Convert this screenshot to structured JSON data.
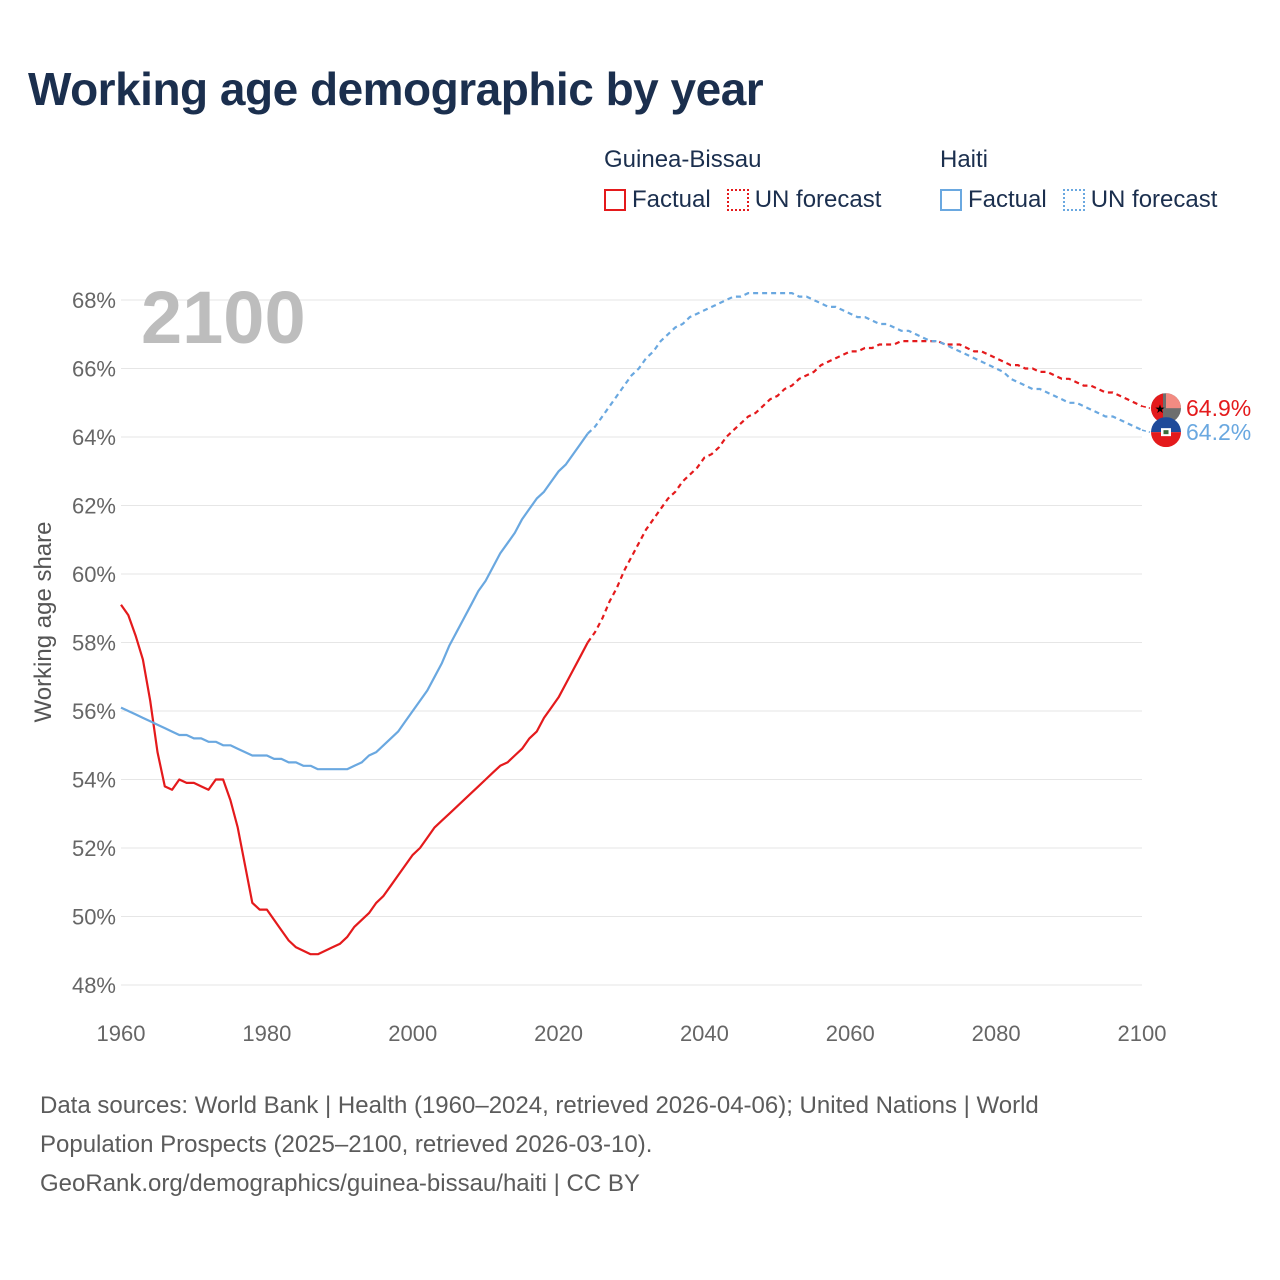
{
  "title": "Working age demographic by year",
  "legend": {
    "groups": [
      {
        "name": "Guinea-Bissau",
        "color": "#e41a1c",
        "factual_label": "Factual",
        "forecast_label": "UN forecast"
      },
      {
        "name": "Haiti",
        "color": "#6aa8e0",
        "factual_label": "Factual",
        "forecast_label": "UN forecast"
      }
    ]
  },
  "year_watermark": "2100",
  "chart_data": {
    "type": "line",
    "title": "Working age demographic by year",
    "xlabel": "",
    "ylabel": "Working age share",
    "xlim": [
      1960,
      2100
    ],
    "ylim": [
      48,
      68
    ],
    "x_ticks": [
      1960,
      1980,
      2000,
      2020,
      2040,
      2060,
      2080,
      2100
    ],
    "y_ticks": [
      48,
      50,
      52,
      54,
      56,
      58,
      60,
      62,
      64,
      66,
      68
    ],
    "y_tick_labels": [
      "48%",
      "50%",
      "52%",
      "54%",
      "56%",
      "58%",
      "60%",
      "62%",
      "64%",
      "66%",
      "68%"
    ],
    "grid": true,
    "factual_range": [
      1960,
      2024
    ],
    "forecast_range": [
      2025,
      2100
    ],
    "series": [
      {
        "name": "Guinea-Bissau",
        "color": "#e41a1c",
        "end_label": "64.9%",
        "points": [
          [
            1960,
            59.1
          ],
          [
            1961,
            58.8
          ],
          [
            1962,
            58.2
          ],
          [
            1963,
            57.5
          ],
          [
            1964,
            56.3
          ],
          [
            1965,
            54.8
          ],
          [
            1966,
            53.8
          ],
          [
            1967,
            53.7
          ],
          [
            1968,
            54.0
          ],
          [
            1969,
            53.9
          ],
          [
            1970,
            53.9
          ],
          [
            1971,
            53.8
          ],
          [
            1972,
            53.7
          ],
          [
            1973,
            54.0
          ],
          [
            1974,
            54.0
          ],
          [
            1975,
            53.4
          ],
          [
            1976,
            52.6
          ],
          [
            1977,
            51.5
          ],
          [
            1978,
            50.4
          ],
          [
            1979,
            50.2
          ],
          [
            1980,
            50.2
          ],
          [
            1981,
            49.9
          ],
          [
            1982,
            49.6
          ],
          [
            1983,
            49.3
          ],
          [
            1984,
            49.1
          ],
          [
            1985,
            49.0
          ],
          [
            1986,
            48.9
          ],
          [
            1987,
            48.9
          ],
          [
            1988,
            49.0
          ],
          [
            1989,
            49.1
          ],
          [
            1990,
            49.2
          ],
          [
            1991,
            49.4
          ],
          [
            1992,
            49.7
          ],
          [
            1993,
            49.9
          ],
          [
            1994,
            50.1
          ],
          [
            1995,
            50.4
          ],
          [
            1996,
            50.6
          ],
          [
            1997,
            50.9
          ],
          [
            1998,
            51.2
          ],
          [
            1999,
            51.5
          ],
          [
            2000,
            51.8
          ],
          [
            2001,
            52.0
          ],
          [
            2002,
            52.3
          ],
          [
            2003,
            52.6
          ],
          [
            2004,
            52.8
          ],
          [
            2005,
            53.0
          ],
          [
            2006,
            53.2
          ],
          [
            2007,
            53.4
          ],
          [
            2008,
            53.6
          ],
          [
            2009,
            53.8
          ],
          [
            2010,
            54.0
          ],
          [
            2011,
            54.2
          ],
          [
            2012,
            54.4
          ],
          [
            2013,
            54.5
          ],
          [
            2014,
            54.7
          ],
          [
            2015,
            54.9
          ],
          [
            2016,
            55.2
          ],
          [
            2017,
            55.4
          ],
          [
            2018,
            55.8
          ],
          [
            2019,
            56.1
          ],
          [
            2020,
            56.4
          ],
          [
            2021,
            56.8
          ],
          [
            2022,
            57.2
          ],
          [
            2023,
            57.6
          ],
          [
            2024,
            58.0
          ],
          [
            2025,
            58.3
          ],
          [
            2026,
            58.7
          ],
          [
            2027,
            59.2
          ],
          [
            2028,
            59.6
          ],
          [
            2029,
            60.1
          ],
          [
            2030,
            60.5
          ],
          [
            2031,
            60.9
          ],
          [
            2032,
            61.3
          ],
          [
            2033,
            61.6
          ],
          [
            2034,
            61.9
          ],
          [
            2035,
            62.2
          ],
          [
            2036,
            62.4
          ],
          [
            2037,
            62.7
          ],
          [
            2038,
            62.9
          ],
          [
            2039,
            63.1
          ],
          [
            2040,
            63.4
          ],
          [
            2041,
            63.5
          ],
          [
            2042,
            63.7
          ],
          [
            2043,
            64.0
          ],
          [
            2044,
            64.2
          ],
          [
            2045,
            64.4
          ],
          [
            2046,
            64.6
          ],
          [
            2047,
            64.7
          ],
          [
            2048,
            64.9
          ],
          [
            2049,
            65.1
          ],
          [
            2050,
            65.2
          ],
          [
            2051,
            65.4
          ],
          [
            2052,
            65.5
          ],
          [
            2053,
            65.7
          ],
          [
            2054,
            65.8
          ],
          [
            2055,
            65.9
          ],
          [
            2056,
            66.1
          ],
          [
            2057,
            66.2
          ],
          [
            2058,
            66.3
          ],
          [
            2059,
            66.4
          ],
          [
            2060,
            66.5
          ],
          [
            2061,
            66.5
          ],
          [
            2062,
            66.6
          ],
          [
            2063,
            66.6
          ],
          [
            2064,
            66.7
          ],
          [
            2065,
            66.7
          ],
          [
            2066,
            66.7
          ],
          [
            2067,
            66.8
          ],
          [
            2068,
            66.8
          ],
          [
            2069,
            66.8
          ],
          [
            2070,
            66.8
          ],
          [
            2071,
            66.8
          ],
          [
            2072,
            66.8
          ],
          [
            2073,
            66.7
          ],
          [
            2074,
            66.7
          ],
          [
            2075,
            66.7
          ],
          [
            2076,
            66.6
          ],
          [
            2077,
            66.5
          ],
          [
            2078,
            66.5
          ],
          [
            2079,
            66.4
          ],
          [
            2080,
            66.3
          ],
          [
            2081,
            66.2
          ],
          [
            2082,
            66.1
          ],
          [
            2083,
            66.1
          ],
          [
            2084,
            66.0
          ],
          [
            2085,
            66.0
          ],
          [
            2086,
            65.9
          ],
          [
            2087,
            65.9
          ],
          [
            2088,
            65.8
          ],
          [
            2089,
            65.7
          ],
          [
            2090,
            65.7
          ],
          [
            2091,
            65.6
          ],
          [
            2092,
            65.5
          ],
          [
            2093,
            65.5
          ],
          [
            2094,
            65.4
          ],
          [
            2095,
            65.3
          ],
          [
            2096,
            65.3
          ],
          [
            2097,
            65.2
          ],
          [
            2098,
            65.1
          ],
          [
            2099,
            65.0
          ],
          [
            2100,
            64.9
          ]
        ]
      },
      {
        "name": "Haiti",
        "color": "#6aa8e0",
        "end_label": "64.2%",
        "points": [
          [
            1960,
            56.1
          ],
          [
            1961,
            56.0
          ],
          [
            1962,
            55.9
          ],
          [
            1963,
            55.8
          ],
          [
            1964,
            55.7
          ],
          [
            1965,
            55.6
          ],
          [
            1966,
            55.5
          ],
          [
            1967,
            55.4
          ],
          [
            1968,
            55.3
          ],
          [
            1969,
            55.3
          ],
          [
            1970,
            55.2
          ],
          [
            1971,
            55.2
          ],
          [
            1972,
            55.1
          ],
          [
            1973,
            55.1
          ],
          [
            1974,
            55.0
          ],
          [
            1975,
            55.0
          ],
          [
            1976,
            54.9
          ],
          [
            1977,
            54.8
          ],
          [
            1978,
            54.7
          ],
          [
            1979,
            54.7
          ],
          [
            1980,
            54.7
          ],
          [
            1981,
            54.6
          ],
          [
            1982,
            54.6
          ],
          [
            1983,
            54.5
          ],
          [
            1984,
            54.5
          ],
          [
            1985,
            54.4
          ],
          [
            1986,
            54.4
          ],
          [
            1987,
            54.3
          ],
          [
            1988,
            54.3
          ],
          [
            1989,
            54.3
          ],
          [
            1990,
            54.3
          ],
          [
            1991,
            54.3
          ],
          [
            1992,
            54.4
          ],
          [
            1993,
            54.5
          ],
          [
            1994,
            54.7
          ],
          [
            1995,
            54.8
          ],
          [
            1996,
            55.0
          ],
          [
            1997,
            55.2
          ],
          [
            1998,
            55.4
          ],
          [
            1999,
            55.7
          ],
          [
            2000,
            56.0
          ],
          [
            2001,
            56.3
          ],
          [
            2002,
            56.6
          ],
          [
            2003,
            57.0
          ],
          [
            2004,
            57.4
          ],
          [
            2005,
            57.9
          ],
          [
            2006,
            58.3
          ],
          [
            2007,
            58.7
          ],
          [
            2008,
            59.1
          ],
          [
            2009,
            59.5
          ],
          [
            2010,
            59.8
          ],
          [
            2011,
            60.2
          ],
          [
            2012,
            60.6
          ],
          [
            2013,
            60.9
          ],
          [
            2014,
            61.2
          ],
          [
            2015,
            61.6
          ],
          [
            2016,
            61.9
          ],
          [
            2017,
            62.2
          ],
          [
            2018,
            62.4
          ],
          [
            2019,
            62.7
          ],
          [
            2020,
            63.0
          ],
          [
            2021,
            63.2
          ],
          [
            2022,
            63.5
          ],
          [
            2023,
            63.8
          ],
          [
            2024,
            64.1
          ],
          [
            2025,
            64.3
          ],
          [
            2026,
            64.6
          ],
          [
            2027,
            64.9
          ],
          [
            2028,
            65.2
          ],
          [
            2029,
            65.5
          ],
          [
            2030,
            65.8
          ],
          [
            2031,
            66.0
          ],
          [
            2032,
            66.3
          ],
          [
            2033,
            66.5
          ],
          [
            2034,
            66.8
          ],
          [
            2035,
            67.0
          ],
          [
            2036,
            67.2
          ],
          [
            2037,
            67.3
          ],
          [
            2038,
            67.5
          ],
          [
            2039,
            67.6
          ],
          [
            2040,
            67.7
          ],
          [
            2041,
            67.8
          ],
          [
            2042,
            67.9
          ],
          [
            2043,
            68.0
          ],
          [
            2044,
            68.1
          ],
          [
            2045,
            68.1
          ],
          [
            2046,
            68.2
          ],
          [
            2047,
            68.2
          ],
          [
            2048,
            68.2
          ],
          [
            2049,
            68.2
          ],
          [
            2050,
            68.2
          ],
          [
            2051,
            68.2
          ],
          [
            2052,
            68.2
          ],
          [
            2053,
            68.1
          ],
          [
            2054,
            68.1
          ],
          [
            2055,
            68.0
          ],
          [
            2056,
            67.9
          ],
          [
            2057,
            67.8
          ],
          [
            2058,
            67.8
          ],
          [
            2059,
            67.7
          ],
          [
            2060,
            67.6
          ],
          [
            2061,
            67.5
          ],
          [
            2062,
            67.5
          ],
          [
            2063,
            67.4
          ],
          [
            2064,
            67.3
          ],
          [
            2065,
            67.3
          ],
          [
            2066,
            67.2
          ],
          [
            2067,
            67.1
          ],
          [
            2068,
            67.1
          ],
          [
            2069,
            67.0
          ],
          [
            2070,
            66.9
          ],
          [
            2071,
            66.8
          ],
          [
            2072,
            66.8
          ],
          [
            2073,
            66.7
          ],
          [
            2074,
            66.6
          ],
          [
            2075,
            66.5
          ],
          [
            2076,
            66.4
          ],
          [
            2077,
            66.3
          ],
          [
            2078,
            66.2
          ],
          [
            2079,
            66.1
          ],
          [
            2080,
            66.0
          ],
          [
            2081,
            65.9
          ],
          [
            2082,
            65.7
          ],
          [
            2083,
            65.6
          ],
          [
            2084,
            65.5
          ],
          [
            2085,
            65.4
          ],
          [
            2086,
            65.4
          ],
          [
            2087,
            65.3
          ],
          [
            2088,
            65.2
          ],
          [
            2089,
            65.1
          ],
          [
            2090,
            65.0
          ],
          [
            2091,
            65.0
          ],
          [
            2092,
            64.9
          ],
          [
            2093,
            64.8
          ],
          [
            2094,
            64.7
          ],
          [
            2095,
            64.6
          ],
          [
            2096,
            64.6
          ],
          [
            2097,
            64.5
          ],
          [
            2098,
            64.4
          ],
          [
            2099,
            64.3
          ],
          [
            2100,
            64.2
          ]
        ]
      }
    ]
  },
  "footer": {
    "sources_line1": "Data sources: World Bank | Health (1960–2024, retrieved 2026-04-06); United Nations | World",
    "sources_line2": "Population Prospects (2025–2100, retrieved 2026-03-10).",
    "credit": "GeoRank.org/demographics/guinea-bissau/haiti | CC BY"
  }
}
